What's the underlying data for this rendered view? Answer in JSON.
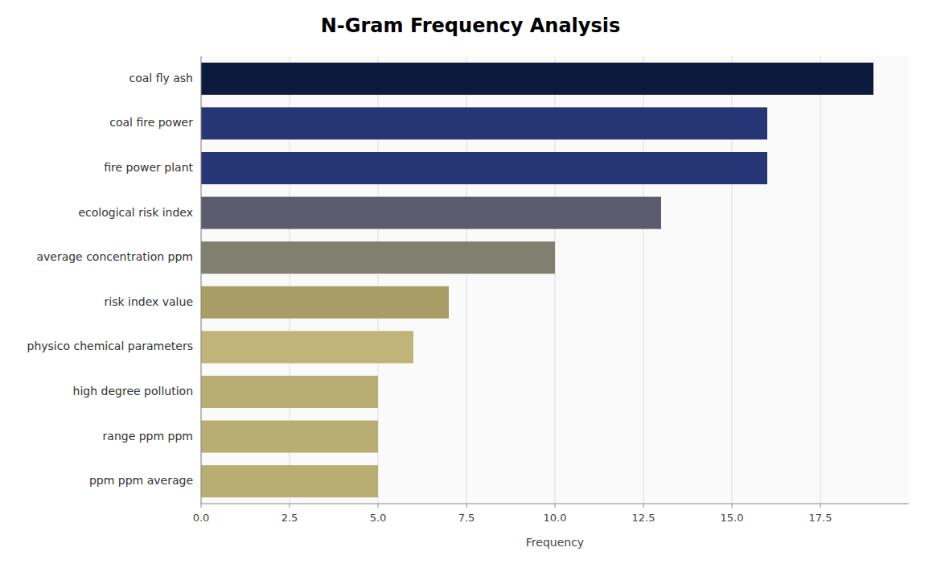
{
  "chart_data": {
    "type": "bar",
    "orientation": "horizontal",
    "title": "N-Gram Frequency Analysis",
    "categories": [
      "ppm ppm average",
      "range ppm ppm",
      "high degree pollution",
      "physico chemical parameters",
      "risk index value",
      "average concentration ppm",
      "ecological risk index",
      "fire power plant",
      "coal fire power",
      "coal fly ash"
    ],
    "values": [
      5.0,
      5.0,
      5.0,
      6.0,
      7.0,
      10.0,
      13.0,
      16.0,
      16.0,
      19.0
    ],
    "colors": [
      "#b8ad72",
      "#b8ad72",
      "#b8ad72",
      "#c0b478",
      "#a89d65",
      "#808070",
      "#5c5c6e",
      "#263573",
      "#263573",
      "#0c1a3c"
    ],
    "xlabel": "Frequency",
    "xlim": [
      0,
      20
    ],
    "xticks": [
      {
        "value": 0,
        "label": "0.0"
      },
      2.5,
      {
        "value": 5,
        "label": "5.0"
      },
      7.5,
      {
        "value": 10,
        "label": "10.0"
      },
      12.5,
      {
        "value": 15,
        "label": "15.0"
      },
      17.5
    ],
    "grid": true
  }
}
